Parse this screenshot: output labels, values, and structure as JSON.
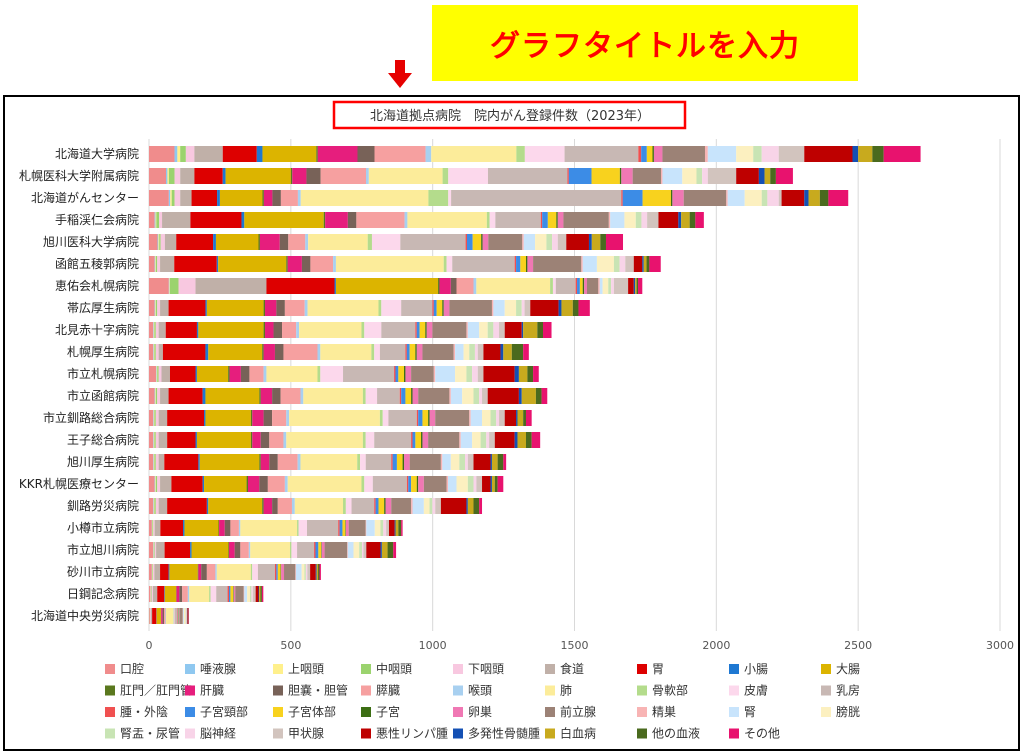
{
  "banner": {
    "text": "グラフタイトルを入力",
    "bg_color": "#ffff00",
    "text_color": "#ff0000"
  },
  "arrow": {
    "icon": "down-arrow-icon",
    "color": "#e60000"
  },
  "title_box_color": "#ff0000",
  "chart_data": {
    "type": "bar",
    "orientation": "horizontal",
    "stacked": true,
    "title": "北海道拠点病院　院内がん登録件数（2023年）",
    "xlim": [
      0,
      3000
    ],
    "xticks": [
      0,
      500,
      1000,
      1500,
      2000,
      2500,
      3000
    ],
    "grid": true,
    "legend_position": "bottom",
    "categories": [
      "北海道大学病院",
      "札幌医科大学附属病院",
      "北海道がんセンター",
      "手稲渓仁会病院",
      "旭川医科大学病院",
      "函館五稜郭病院",
      "恵佑会札幌病院",
      "帯広厚生病院",
      "北見赤十字病院",
      "札幌厚生病院",
      "市立札幌病院",
      "市立函館病院",
      "市立釧路総合病院",
      "王子総合病院",
      "旭川厚生病院",
      "KKR札幌医療センター",
      "釧路労災病院",
      "小樽市立病院",
      "市立旭川病院",
      "砂川市立病院",
      "日鋼記念病院",
      "北海道中央労災病院"
    ],
    "series": [
      {
        "name": "口腔",
        "color": "#f08c8c",
        "values": [
          90,
          60,
          70,
          20,
          30,
          20,
          70,
          20,
          15,
          15,
          25,
          20,
          15,
          15,
          15,
          20,
          15,
          10,
          15,
          10,
          5,
          3
        ]
      },
      {
        "name": "唾液腺",
        "color": "#8fc8f0",
        "values": [
          10,
          5,
          5,
          3,
          3,
          2,
          2,
          2,
          2,
          2,
          2,
          2,
          2,
          2,
          2,
          2,
          2,
          1,
          1,
          1,
          1,
          0
        ]
      },
      {
        "name": "上咽頭",
        "color": "#fff08c",
        "values": [
          10,
          5,
          5,
          3,
          3,
          2,
          2,
          2,
          2,
          2,
          2,
          2,
          2,
          2,
          2,
          2,
          2,
          1,
          1,
          1,
          1,
          0
        ]
      },
      {
        "name": "中咽頭",
        "color": "#9bd36e",
        "values": [
          20,
          20,
          10,
          10,
          5,
          5,
          30,
          5,
          5,
          5,
          5,
          5,
          5,
          5,
          5,
          5,
          5,
          3,
          3,
          2,
          2,
          1
        ]
      },
      {
        "name": "下咽頭",
        "color": "#f8c8e0",
        "values": [
          30,
          20,
          20,
          10,
          15,
          10,
          60,
          10,
          10,
          10,
          10,
          10,
          10,
          10,
          10,
          10,
          10,
          5,
          5,
          5,
          5,
          2
        ]
      },
      {
        "name": "食道",
        "color": "#c0b0a8",
        "values": [
          100,
          50,
          40,
          100,
          40,
          50,
          250,
          30,
          25,
          15,
          30,
          30,
          30,
          30,
          20,
          40,
          30,
          20,
          30,
          20,
          15,
          5
        ]
      },
      {
        "name": "胃",
        "color": "#dd0000",
        "values": [
          120,
          100,
          90,
          180,
          130,
          150,
          240,
          130,
          110,
          150,
          90,
          120,
          130,
          100,
          120,
          110,
          140,
          80,
          90,
          30,
          25,
          15
        ]
      },
      {
        "name": "小腸",
        "color": "#1e78d2",
        "values": [
          20,
          10,
          10,
          10,
          10,
          5,
          5,
          5,
          5,
          10,
          5,
          10,
          5,
          5,
          5,
          5,
          5,
          5,
          5,
          3,
          2,
          1
        ]
      },
      {
        "name": "大腸",
        "color": "#dcb400",
        "values": [
          190,
          230,
          150,
          280,
          150,
          240,
          360,
          200,
          230,
          190,
          110,
          190,
          160,
          190,
          210,
          150,
          190,
          120,
          130,
          100,
          40,
          15
        ]
      },
      {
        "name": "肛門／肛門管",
        "color": "#5a781e",
        "values": [
          5,
          5,
          5,
          5,
          5,
          5,
          5,
          5,
          5,
          5,
          5,
          5,
          5,
          5,
          5,
          5,
          5,
          2,
          2,
          2,
          1,
          1
        ]
      },
      {
        "name": "肝臓",
        "color": "#e61e7d",
        "values": [
          140,
          50,
          30,
          80,
          70,
          50,
          40,
          40,
          30,
          40,
          40,
          40,
          40,
          30,
          30,
          40,
          30,
          20,
          20,
          10,
          10,
          5
        ]
      },
      {
        "name": "胆嚢・胆管",
        "color": "#786258",
        "values": [
          60,
          50,
          30,
          30,
          30,
          30,
          20,
          30,
          30,
          30,
          30,
          30,
          30,
          30,
          30,
          30,
          20,
          20,
          20,
          20,
          10,
          5
        ]
      },
      {
        "name": "膵臓",
        "color": "#f6a0a0",
        "values": [
          180,
          160,
          60,
          170,
          60,
          80,
          60,
          70,
          50,
          120,
          50,
          70,
          50,
          50,
          70,
          60,
          50,
          30,
          30,
          30,
          20,
          5
        ]
      },
      {
        "name": "喉頭",
        "color": "#a8d0f0",
        "values": [
          20,
          10,
          10,
          10,
          10,
          10,
          10,
          10,
          10,
          10,
          10,
          10,
          10,
          10,
          10,
          10,
          10,
          5,
          5,
          5,
          5,
          2
        ]
      },
      {
        "name": "肺",
        "color": "#fcec9a",
        "values": [
          300,
          260,
          450,
          280,
          210,
          380,
          260,
          250,
          220,
          180,
          180,
          210,
          320,
          270,
          200,
          260,
          170,
          200,
          140,
          120,
          70,
          25
        ]
      },
      {
        "name": "骨軟部",
        "color": "#b4dc8c",
        "values": [
          30,
          20,
          70,
          10,
          15,
          10,
          10,
          10,
          10,
          10,
          10,
          10,
          10,
          10,
          10,
          10,
          10,
          5,
          5,
          5,
          5,
          2
        ]
      },
      {
        "name": "皮膚",
        "color": "#fcd8ec",
        "values": [
          140,
          140,
          10,
          20,
          100,
          20,
          10,
          70,
          60,
          20,
          80,
          40,
          20,
          30,
          20,
          30,
          20,
          30,
          20,
          20,
          20,
          3
        ]
      },
      {
        "name": "乳房",
        "color": "#c8b8b4",
        "values": [
          260,
          280,
          600,
          160,
          230,
          220,
          70,
          110,
          120,
          90,
          180,
          80,
          100,
          130,
          90,
          120,
          80,
          110,
          60,
          60,
          40,
          10
        ]
      },
      {
        "name": "腫・外陰",
        "color": "#f05050",
        "values": [
          10,
          5,
          5,
          5,
          5,
          5,
          5,
          5,
          5,
          5,
          5,
          5,
          5,
          5,
          5,
          5,
          5,
          5,
          5,
          5,
          5,
          2
        ]
      },
      {
        "name": "子宮頸部",
        "color": "#3c8ce6",
        "values": [
          20,
          80,
          70,
          20,
          20,
          15,
          10,
          10,
          10,
          10,
          10,
          15,
          15,
          10,
          15,
          10,
          10,
          10,
          10,
          5,
          5,
          2
        ]
      },
      {
        "name": "子宮体部",
        "color": "#f8d21e",
        "values": [
          20,
          100,
          100,
          30,
          30,
          20,
          10,
          20,
          20,
          20,
          20,
          20,
          20,
          20,
          20,
          20,
          20,
          10,
          10,
          10,
          10,
          2
        ]
      },
      {
        "name": "子宮",
        "color": "#3c6e14",
        "values": [
          5,
          5,
          5,
          5,
          5,
          5,
          5,
          5,
          5,
          5,
          5,
          5,
          5,
          5,
          5,
          5,
          5,
          2,
          2,
          2,
          2,
          1
        ]
      },
      {
        "name": "卵巣",
        "color": "#f078b4",
        "values": [
          30,
          40,
          40,
          20,
          20,
          20,
          10,
          20,
          20,
          20,
          20,
          20,
          20,
          20,
          20,
          20,
          20,
          10,
          10,
          10,
          5,
          2
        ]
      },
      {
        "name": "前立腺",
        "color": "#9c8276",
        "values": [
          150,
          100,
          150,
          160,
          120,
          170,
          40,
          150,
          120,
          110,
          80,
          110,
          120,
          110,
          110,
          80,
          70,
          60,
          80,
          40,
          30,
          10
        ]
      },
      {
        "name": "精巣",
        "color": "#f8b4b4",
        "values": [
          10,
          5,
          5,
          5,
          5,
          5,
          5,
          5,
          5,
          5,
          5,
          5,
          5,
          5,
          5,
          5,
          5,
          2,
          2,
          2,
          2,
          1
        ]
      },
      {
        "name": "腎",
        "color": "#c8e4fc",
        "values": [
          100,
          70,
          60,
          50,
          40,
          50,
          10,
          40,
          40,
          30,
          70,
          40,
          40,
          40,
          30,
          30,
          40,
          30,
          20,
          20,
          10,
          3
        ]
      },
      {
        "name": "膀胱",
        "color": "#fcf0c0",
        "values": [
          60,
          50,
          60,
          40,
          40,
          60,
          20,
          40,
          30,
          20,
          40,
          40,
          30,
          30,
          30,
          40,
          20,
          20,
          20,
          10,
          10,
          5
        ]
      },
      {
        "name": "腎盂・尿管",
        "color": "#c8e4b4",
        "values": [
          30,
          20,
          20,
          20,
          20,
          20,
          10,
          20,
          20,
          20,
          20,
          20,
          20,
          20,
          20,
          20,
          10,
          10,
          10,
          5,
          5,
          2
        ]
      },
      {
        "name": "脳神経",
        "color": "#f8d4e8",
        "values": [
          60,
          20,
          40,
          20,
          20,
          20,
          10,
          10,
          20,
          10,
          20,
          10,
          10,
          10,
          10,
          10,
          10,
          10,
          5,
          5,
          5,
          2
        ]
      },
      {
        "name": "甲状腺",
        "color": "#d2c4be",
        "values": [
          90,
          100,
          10,
          40,
          30,
          30,
          50,
          20,
          20,
          20,
          20,
          20,
          20,
          20,
          20,
          20,
          20,
          10,
          10,
          10,
          10,
          2
        ]
      },
      {
        "name": "悪性リンパ腫",
        "color": "#be0000",
        "values": [
          170,
          80,
          80,
          70,
          80,
          30,
          20,
          100,
          60,
          60,
          110,
          110,
          40,
          70,
          60,
          30,
          90,
          20,
          50,
          20,
          10,
          2
        ]
      },
      {
        "name": "多発性骨髄腫",
        "color": "#1450b4",
        "values": [
          20,
          20,
          15,
          10,
          10,
          5,
          5,
          10,
          5,
          10,
          15,
          10,
          5,
          10,
          5,
          5,
          5,
          3,
          5,
          3,
          2,
          1
        ]
      },
      {
        "name": "白血病",
        "color": "#c8aa1e",
        "values": [
          50,
          20,
          40,
          30,
          30,
          10,
          5,
          40,
          50,
          30,
          30,
          50,
          20,
          30,
          20,
          10,
          20,
          10,
          20,
          5,
          5,
          1
        ]
      },
      {
        "name": "他の血液",
        "color": "#4a6a1e",
        "values": [
          40,
          20,
          30,
          20,
          20,
          10,
          5,
          20,
          20,
          40,
          20,
          20,
          10,
          20,
          20,
          10,
          20,
          10,
          20,
          5,
          5,
          1
        ]
      },
      {
        "name": "その他",
        "color": "#e8126e",
        "values": [
          130,
          60,
          70,
          30,
          60,
          40,
          15,
          40,
          30,
          20,
          20,
          20,
          20,
          30,
          10,
          20,
          10,
          5,
          10,
          5,
          5,
          2
        ]
      }
    ]
  }
}
